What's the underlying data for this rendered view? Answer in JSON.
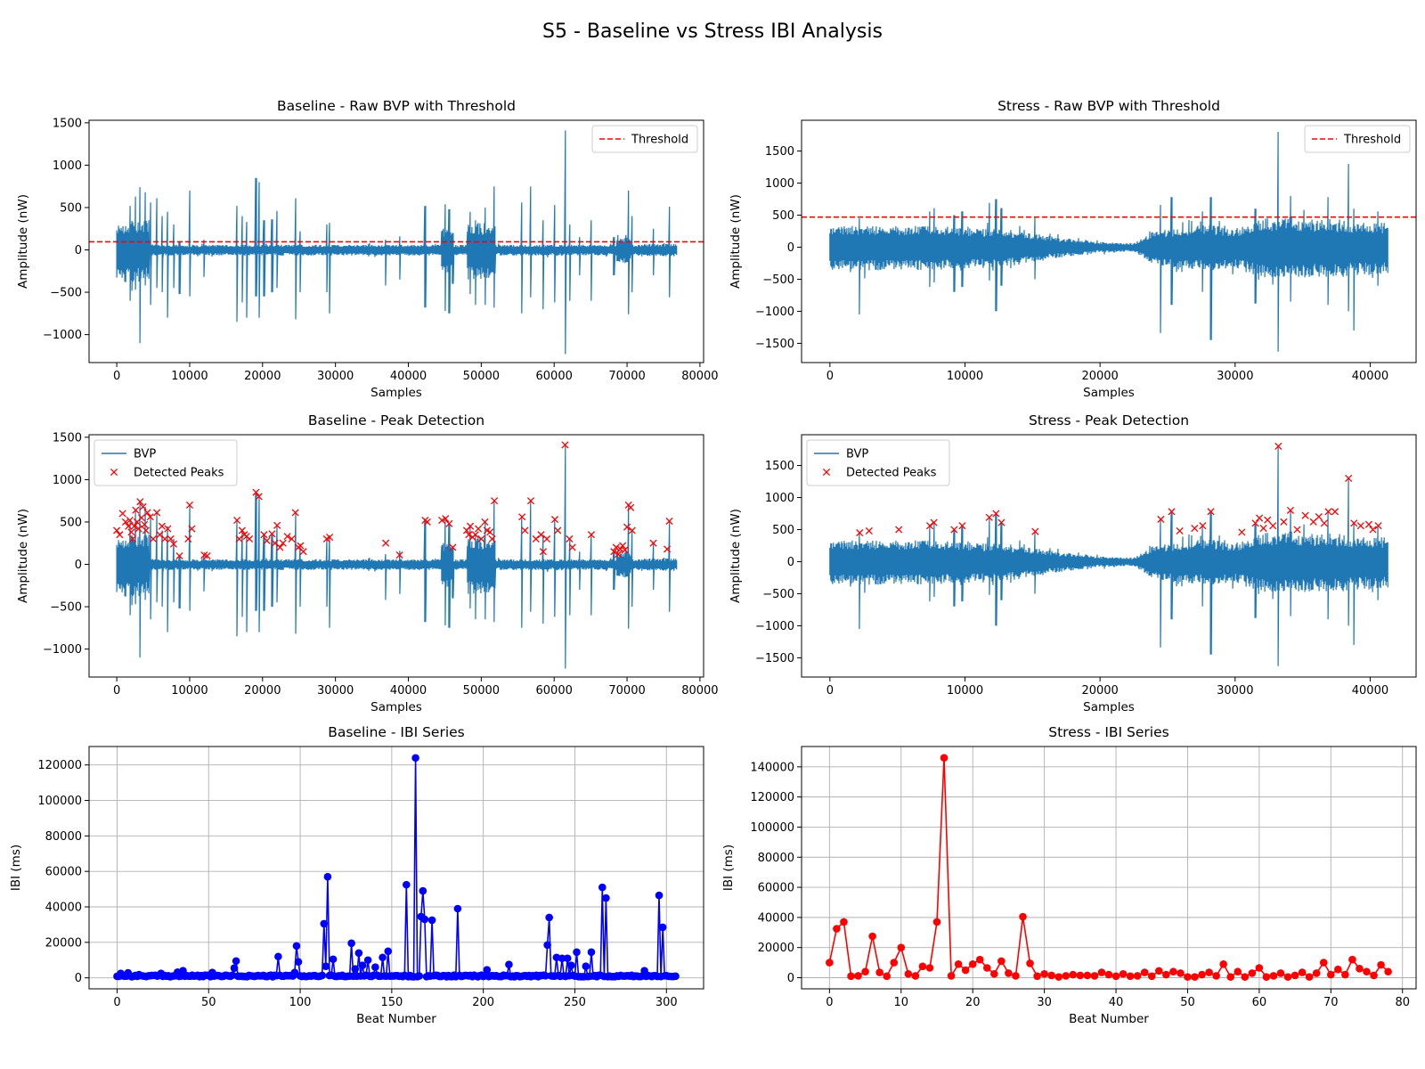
{
  "figure": {
    "title": "S5 - Baseline vs Stress IBI Analysis"
  },
  "colors": {
    "signal": "#1f77b4",
    "threshold": "#ff0000",
    "peaks": "#ff0000",
    "ibi_baseline": "#0000ff",
    "ibi_stress": "#ff0000",
    "grid": "#b0b0b0"
  },
  "chart_data": [
    {
      "id": "baseline-raw",
      "type": "line",
      "title": "Baseline - Raw BVP with Threshold",
      "xlabel": "Samples",
      "ylabel": "Amplitude (nW)",
      "xlim": [
        -3800,
        80500
      ],
      "ylim": [
        -1330,
        1530
      ],
      "xticks": [
        0,
        10000,
        20000,
        30000,
        40000,
        50000,
        60000,
        70000,
        80000
      ],
      "yticks": [
        -1000,
        -500,
        0,
        500,
        1000,
        1500
      ],
      "legend": {
        "position": "top-right",
        "entries": [
          "Threshold"
        ]
      },
      "grid": false,
      "threshold": 95,
      "signal": {
        "name": "BVP",
        "length": 76800,
        "base_amplitude": 60,
        "dense_segments": [
          [
            0,
            4500,
            350
          ],
          [
            44500,
            46000,
            280
          ],
          [
            48000,
            52000,
            320
          ],
          [
            68500,
            70500,
            150
          ],
          [
            72000,
            76800,
            70
          ]
        ],
        "spikes": [
          [
            1800,
            520,
            -600
          ],
          [
            2600,
            630,
            -470
          ],
          [
            3200,
            740,
            -1100
          ],
          [
            3900,
            680,
            -420
          ],
          [
            4600,
            560,
            -650
          ],
          [
            5500,
            610,
            -450
          ],
          [
            6200,
            400,
            -500
          ],
          [
            7000,
            450,
            -800
          ],
          [
            7800,
            300,
            -450
          ],
          [
            8600,
            100,
            -520
          ],
          [
            10000,
            700,
            -550
          ],
          [
            12000,
            120,
            -320
          ],
          [
            16500,
            520,
            -850
          ],
          [
            17200,
            400,
            -620
          ],
          [
            17800,
            330,
            -800
          ],
          [
            19100,
            850,
            -550
          ],
          [
            19500,
            800,
            -800
          ],
          [
            20200,
            350,
            -550
          ],
          [
            21300,
            360,
            -500
          ],
          [
            22000,
            460,
            -450
          ],
          [
            24500,
            610,
            -820
          ],
          [
            25200,
            220,
            -500
          ],
          [
            28800,
            300,
            -500
          ],
          [
            29200,
            320,
            -750
          ],
          [
            36900,
            120,
            -420
          ],
          [
            38800,
            160,
            -350
          ],
          [
            42300,
            520,
            -680
          ],
          [
            45100,
            540,
            -720
          ],
          [
            45600,
            480,
            -750
          ],
          [
            46100,
            200,
            -400
          ],
          [
            48500,
            450,
            -520
          ],
          [
            49200,
            350,
            -650
          ],
          [
            50500,
            500,
            -650
          ],
          [
            51800,
            750,
            -680
          ],
          [
            55600,
            560,
            -750
          ],
          [
            56800,
            750,
            -560
          ],
          [
            58500,
            350,
            -700
          ],
          [
            60100,
            530,
            -620
          ],
          [
            61500,
            1410,
            -1230
          ],
          [
            62100,
            300,
            -600
          ],
          [
            63500,
            150,
            -300
          ],
          [
            65100,
            350,
            -600
          ],
          [
            68200,
            150,
            -300
          ],
          [
            70200,
            700,
            -760
          ],
          [
            70700,
            400,
            -500
          ],
          [
            73600,
            250,
            -300
          ],
          [
            75800,
            510,
            -560
          ]
        ]
      }
    },
    {
      "id": "stress-raw",
      "type": "line",
      "title": "Stress - Raw BVP with Threshold",
      "xlabel": "Samples",
      "ylabel": "Amplitude (nW)",
      "xlim": [
        -2100,
        43400
      ],
      "ylim": [
        -1800,
        1980
      ],
      "xticks": [
        0,
        10000,
        20000,
        30000,
        40000
      ],
      "yticks": [
        -1500,
        -1000,
        -500,
        0,
        500,
        1000,
        1500
      ],
      "legend": {
        "position": "top-right",
        "entries": [
          "Threshold"
        ]
      },
      "grid": false,
      "threshold": 470,
      "signal": {
        "name": "BVP",
        "length": 41300,
        "envelope": [
          [
            0,
            330
          ],
          [
            8000,
            330
          ],
          [
            13000,
            280
          ],
          [
            17000,
            150
          ],
          [
            20000,
            80
          ],
          [
            22500,
            60
          ],
          [
            24000,
            250
          ],
          [
            28000,
            350
          ],
          [
            30000,
            300
          ],
          [
            32000,
            450
          ],
          [
            36000,
            430
          ],
          [
            41300,
            380
          ]
        ],
        "spikes": [
          [
            2200,
            450,
            -1050
          ],
          [
            7400,
            560,
            -620
          ],
          [
            7700,
            610,
            -550
          ],
          [
            9200,
            500,
            -700
          ],
          [
            9800,
            560,
            -620
          ],
          [
            11800,
            690,
            -520
          ],
          [
            12300,
            750,
            -1000
          ],
          [
            12700,
            610,
            -600
          ],
          [
            15200,
            470,
            -500
          ],
          [
            24500,
            660,
            -1340
          ],
          [
            25300,
            780,
            -900
          ],
          [
            27600,
            560,
            -700
          ],
          [
            28200,
            780,
            -1450
          ],
          [
            31500,
            600,
            -880
          ],
          [
            33200,
            1800,
            -1630
          ],
          [
            34100,
            800,
            -850
          ],
          [
            36900,
            780,
            -900
          ],
          [
            38400,
            1300,
            -1000
          ],
          [
            38800,
            600,
            -1300
          ],
          [
            40600,
            560,
            -600
          ]
        ]
      }
    },
    {
      "id": "baseline-peaks",
      "type": "line",
      "title": "Baseline - Peak Detection",
      "xlabel": "Samples",
      "ylabel": "Amplitude (nW)",
      "xlim": [
        -3800,
        80500
      ],
      "ylim": [
        -1330,
        1530
      ],
      "xticks": [
        0,
        10000,
        20000,
        30000,
        40000,
        50000,
        60000,
        70000,
        80000
      ],
      "yticks": [
        -1000,
        -500,
        0,
        500,
        1000,
        1500
      ],
      "legend": {
        "position": "top-left",
        "entries": [
          "BVP",
          "Detected Peaks"
        ]
      },
      "grid": false,
      "peaks": {
        "name": "Detected Peaks",
        "x": [
          0,
          400,
          800,
          1200,
          1600,
          1800,
          2000,
          2200,
          2400,
          2600,
          2800,
          3000,
          3200,
          3400,
          3600,
          3800,
          4000,
          4200,
          4600,
          5000,
          5500,
          5900,
          6200,
          6600,
          7000,
          7400,
          7800,
          8600,
          9800,
          10000,
          10300,
          12000,
          12400,
          16500,
          16800,
          17200,
          17500,
          17800,
          18200,
          19100,
          19500,
          20200,
          20600,
          21300,
          21700,
          22000,
          22400,
          22800,
          23400,
          24000,
          24500,
          24900,
          25200,
          25600,
          28800,
          29200,
          36900,
          38800,
          42300,
          42600,
          44600,
          45100,
          45600,
          46100,
          48000,
          48300,
          48500,
          48800,
          49200,
          49600,
          50000,
          50500,
          50800,
          51200,
          51500,
          51800,
          55600,
          56000,
          56800,
          57500,
          58200,
          58500,
          59000,
          60100,
          60500,
          61500,
          62100,
          62500,
          65100,
          68200,
          68500,
          68800,
          69100,
          69400,
          69700,
          70000,
          70200,
          70500,
          70700,
          73600,
          75500,
          75800
        ],
        "y": [
          400,
          350,
          600,
          500,
          450,
          520,
          380,
          300,
          450,
          640,
          500,
          420,
          740,
          550,
          680,
          470,
          400,
          610,
          560,
          300,
          610,
          350,
          450,
          300,
          420,
          300,
          240,
          100,
          300,
          700,
          420,
          110,
          100,
          520,
          300,
          400,
          350,
          330,
          300,
          850,
          800,
          350,
          280,
          360,
          250,
          460,
          200,
          250,
          330,
          300,
          610,
          200,
          220,
          150,
          300,
          320,
          250,
          110,
          520,
          500,
          520,
          540,
          480,
          200,
          400,
          350,
          450,
          320,
          350,
          420,
          300,
          500,
          400,
          380,
          300,
          750,
          560,
          400,
          750,
          300,
          350,
          150,
          300,
          530,
          400,
          1410,
          300,
          200,
          350,
          150,
          200,
          120,
          180,
          220,
          170,
          440,
          700,
          670,
          400,
          250,
          180,
          510
        ]
      }
    },
    {
      "id": "stress-peaks",
      "type": "line",
      "title": "Stress - Peak Detection",
      "xlabel": "Samples",
      "ylabel": "Amplitude (nW)",
      "xlim": [
        -2100,
        43400
      ],
      "ylim": [
        -1800,
        1980
      ],
      "xticks": [
        0,
        10000,
        20000,
        30000,
        40000
      ],
      "yticks": [
        -1500,
        -1000,
        -500,
        0,
        500,
        1000,
        1500
      ],
      "legend": {
        "position": "top-left",
        "entries": [
          "BVP",
          "Detected Peaks"
        ]
      },
      "grid": false,
      "peaks": {
        "name": "Detected Peaks",
        "x": [
          2200,
          2900,
          5100,
          7400,
          7700,
          9200,
          9800,
          11800,
          12300,
          12700,
          15200,
          24500,
          25300,
          25900,
          27000,
          27600,
          28200,
          30500,
          31500,
          31800,
          32100,
          32400,
          32800,
          33200,
          33600,
          34100,
          34600,
          35200,
          35800,
          36200,
          36600,
          36900,
          37400,
          38400,
          38800,
          39300,
          39900,
          40200,
          40600
        ],
        "y": [
          450,
          480,
          500,
          560,
          610,
          500,
          560,
          690,
          750,
          610,
          470,
          660,
          780,
          480,
          520,
          560,
          780,
          460,
          600,
          680,
          520,
          650,
          560,
          1800,
          620,
          800,
          500,
          720,
          620,
          700,
          600,
          780,
          780,
          1300,
          600,
          560,
          580,
          500,
          560
        ]
      }
    },
    {
      "id": "baseline-ibi",
      "type": "line",
      "title": "Baseline - IBI Series",
      "xlabel": "Beat Number",
      "ylabel": "IBI (ms)",
      "xlim": [
        -15.3,
        320.3
      ],
      "ylim": [
        -6200,
        130400
      ],
      "xticks": [
        0,
        50,
        100,
        150,
        200,
        250,
        300
      ],
      "yticks": [
        0,
        20000,
        40000,
        60000,
        80000,
        100000,
        120000
      ],
      "grid": true,
      "series": [
        {
          "name": "",
          "marker": "o",
          "count": 306,
          "default_value": 1000,
          "values": {
            "2": 2500,
            "6": 2800,
            "12": 1800,
            "24": 2500,
            "33": 3200,
            "36": 4000,
            "52": 3000,
            "64": 5500,
            "65": 9500,
            "88": 12000,
            "97": 3000,
            "98": 18000,
            "99": 9000,
            "113": 30500,
            "114": 6500,
            "115": 57000,
            "118": 10500,
            "128": 19500,
            "130": 5000,
            "132": 14000,
            "134": 7000,
            "137": 10000,
            "141": 6000,
            "145": 11500,
            "148": 15000,
            "158": 52500,
            "163": 124000,
            "166": 34500,
            "167": 49000,
            "168": 33000,
            "172": 32500,
            "186": 39000,
            "202": 4500,
            "214": 7500,
            "235": 18500,
            "236": 34000,
            "240": 11500,
            "243": 11000,
            "246": 11000,
            "248": 7000,
            "251": 14500,
            "256": 6500,
            "259": 14500,
            "265": 51000,
            "267": 45000,
            "288": 4000,
            "296": 46500,
            "298": 28500
          }
        }
      ]
    },
    {
      "id": "stress-ibi",
      "type": "line",
      "title": "Stress - IBI Series",
      "xlabel": "Beat Number",
      "ylabel": "IBI (ms)",
      "xlim": [
        -3.9,
        81.9
      ],
      "ylim": [
        -7400,
        153500
      ],
      "xticks": [
        0,
        10,
        20,
        30,
        40,
        50,
        60,
        70,
        80
      ],
      "yticks": [
        0,
        20000,
        40000,
        60000,
        80000,
        100000,
        120000,
        140000
      ],
      "grid": true,
      "series": [
        {
          "name": "",
          "marker": "o",
          "count": 79,
          "values": [
            10000,
            32500,
            37000,
            1000,
            1200,
            4000,
            27500,
            3500,
            1000,
            10000,
            20000,
            2500,
            1200,
            7500,
            6500,
            37000,
            146000,
            1200,
            9000,
            5000,
            9000,
            12000,
            6500,
            2500,
            11000,
            3000,
            1200,
            40500,
            9500,
            1000,
            2500,
            1500,
            500,
            1200,
            2000,
            1500,
            1500,
            1200,
            3500,
            2000,
            1000,
            2500,
            1000,
            1200,
            3500,
            1000,
            4500,
            2000,
            4000,
            3000,
            500,
            500,
            2000,
            3500,
            1200,
            9000,
            500,
            4000,
            500,
            3000,
            6500,
            500,
            1200,
            3000,
            500,
            1500,
            3500,
            500,
            3000,
            10000,
            2000,
            5500,
            2000,
            12000,
            6000,
            4000,
            1500,
            8500,
            4000
          ]
        }
      ]
    }
  ]
}
